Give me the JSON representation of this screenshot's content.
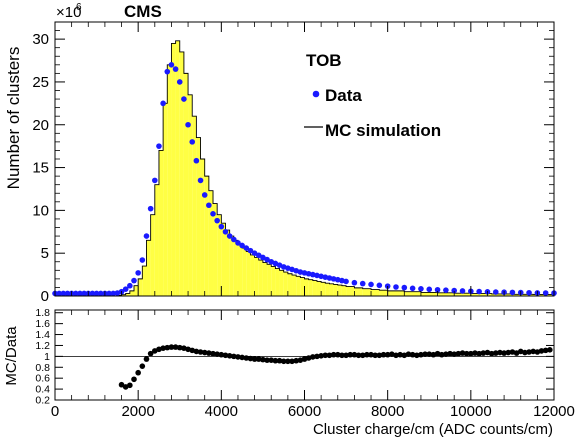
{
  "chart_data": [
    {
      "type": "bar",
      "panel": "main",
      "experiment": "CMS",
      "region_label": "TOB",
      "ylabel": "Number of clusters",
      "y_exponent_label": "×10",
      "y_exponent_power": "6",
      "xlim": [
        0,
        12000
      ],
      "ylim": [
        0,
        32
      ],
      "ytick_labels": [
        "0",
        "5",
        "10",
        "15",
        "20",
        "25",
        "30"
      ],
      "grid": false,
      "legend_placement": "top-right",
      "colors": {
        "mc_fill": "#ffff44",
        "mc_line": "#000000",
        "data_marker": "#1a1aff",
        "axis": "#000000"
      },
      "series": [
        {
          "name": "MC simulation",
          "kind": "histogram",
          "bin_width": 100,
          "bin_low_edges": [
            1500,
            1600,
            1700,
            1800,
            1900,
            2000,
            2100,
            2200,
            2300,
            2400,
            2500,
            2600,
            2700,
            2800,
            2900,
            3000,
            3100,
            3200,
            3300,
            3400,
            3500,
            3600,
            3700,
            3800,
            3900,
            4000,
            4100,
            4200,
            4300,
            4400,
            4500,
            4600,
            4700,
            4800,
            4900,
            5000,
            5100,
            5200,
            5300,
            5400,
            5500,
            5600,
            5700,
            5800,
            5900,
            6000,
            6100,
            6200,
            6300,
            6400,
            6500,
            6600,
            6700,
            6800,
            6900,
            7000,
            7200,
            7400,
            7600,
            7800,
            8000,
            8400,
            8800,
            9200,
            9600,
            10000,
            10500,
            11000,
            11500
          ],
          "values": [
            0.08,
            0.15,
            0.3,
            0.6,
            1.2,
            2.0,
            3.5,
            6.5,
            9.5,
            13.0,
            17.0,
            22.5,
            27.0,
            29.5,
            29.8,
            28.5,
            26.0,
            23.5,
            21.0,
            18.5,
            16.0,
            14.0,
            12.3,
            10.8,
            9.5,
            8.5,
            7.7,
            7.0,
            6.5,
            6.0,
            5.6,
            5.2,
            4.8,
            4.5,
            4.2,
            3.9,
            3.7,
            3.45,
            3.2,
            3.0,
            2.8,
            2.6,
            2.45,
            2.3,
            2.15,
            2.0,
            1.9,
            1.8,
            1.7,
            1.6,
            1.5,
            1.42,
            1.35,
            1.28,
            1.2,
            1.1,
            0.95,
            0.85,
            0.75,
            0.68,
            0.6,
            0.5,
            0.42,
            0.37,
            0.33,
            0.28,
            0.24,
            0.2,
            0.18
          ]
        },
        {
          "name": "Data",
          "kind": "points",
          "x": [
            0,
            100,
            200,
            300,
            400,
            500,
            600,
            700,
            800,
            900,
            1000,
            1100,
            1200,
            1300,
            1400,
            1500,
            1600,
            1700,
            1800,
            1900,
            2000,
            2100,
            2200,
            2300,
            2400,
            2500,
            2600,
            2700,
            2800,
            2900,
            3000,
            3100,
            3200,
            3300,
            3400,
            3500,
            3600,
            3700,
            3800,
            3900,
            4000,
            4100,
            4200,
            4300,
            4400,
            4500,
            4600,
            4700,
            4800,
            4900,
            5000,
            5100,
            5200,
            5300,
            5400,
            5500,
            5600,
            5700,
            5800,
            5900,
            6000,
            6100,
            6200,
            6300,
            6400,
            6500,
            6600,
            6700,
            6800,
            6900,
            7000,
            7200,
            7400,
            7600,
            7800,
            8000,
            8200,
            8400,
            8600,
            8800,
            9000,
            9200,
            9400,
            9600,
            9800,
            10000,
            10200,
            10400,
            10600,
            10800,
            11000,
            11200,
            11400,
            11600,
            11800,
            12000
          ],
          "y": [
            0.3,
            0.3,
            0.3,
            0.3,
            0.3,
            0.3,
            0.3,
            0.3,
            0.3,
            0.3,
            0.3,
            0.3,
            0.3,
            0.3,
            0.3,
            0.35,
            0.5,
            0.8,
            1.2,
            1.8,
            2.7,
            4.2,
            7.0,
            10.2,
            13.5,
            17.5,
            22.5,
            26.2,
            27.0,
            26.5,
            25.0,
            23.0,
            20.0,
            18.0,
            15.8,
            13.5,
            11.8,
            10.6,
            9.6,
            8.8,
            8.1,
            7.5,
            7.0,
            6.6,
            6.2,
            5.9,
            5.6,
            5.3,
            5.0,
            4.75,
            4.5,
            4.25,
            4.0,
            3.8,
            3.6,
            3.4,
            3.25,
            3.1,
            2.95,
            2.8,
            2.7,
            2.6,
            2.5,
            2.4,
            2.3,
            2.2,
            2.1,
            2.0,
            1.9,
            1.8,
            1.7,
            1.55,
            1.45,
            1.35,
            1.25,
            1.15,
            1.05,
            0.98,
            0.9,
            0.84,
            0.78,
            0.73,
            0.68,
            0.63,
            0.59,
            0.55,
            0.52,
            0.49,
            0.46,
            0.44,
            0.42,
            0.4,
            0.38,
            0.36,
            0.35,
            0.34
          ]
        }
      ]
    },
    {
      "type": "scatter",
      "panel": "ratio",
      "ylabel": "MC/Data",
      "xlabel": "Cluster charge/cm (ADC counts/cm)",
      "xlim": [
        0,
        12000
      ],
      "ylim": [
        0.2,
        1.85
      ],
      "reference_line": 1.0,
      "xtick_labels": [
        "0",
        "2000",
        "4000",
        "6000",
        "8000",
        "10000",
        "12000"
      ],
      "ytick_labels": [
        "0.2",
        "0.4",
        "0.6",
        "0.8",
        "1",
        "1.2",
        "1.4",
        "1.6",
        "1.8"
      ],
      "colors": {
        "marker": "#000000",
        "line": "#000000"
      },
      "x": [
        1600,
        1700,
        1800,
        1900,
        2000,
        2100,
        2200,
        2300,
        2400,
        2500,
        2600,
        2700,
        2800,
        2900,
        3000,
        3100,
        3200,
        3300,
        3400,
        3500,
        3600,
        3700,
        3800,
        3900,
        4000,
        4100,
        4200,
        4300,
        4400,
        4500,
        4600,
        4700,
        4800,
        4900,
        5000,
        5100,
        5200,
        5300,
        5400,
        5500,
        5600,
        5700,
        5800,
        5900,
        6000,
        6100,
        6200,
        6300,
        6400,
        6500,
        6600,
        6700,
        6800,
        6900,
        7000,
        7100,
        7200,
        7300,
        7400,
        7500,
        7600,
        7700,
        7800,
        7900,
        8000,
        8100,
        8200,
        8300,
        8400,
        8500,
        8600,
        8700,
        8800,
        8900,
        9000,
        9100,
        9200,
        9300,
        9400,
        9500,
        9600,
        9700,
        9800,
        9900,
        10000,
        10100,
        10200,
        10300,
        10400,
        10500,
        10600,
        10700,
        10800,
        10900,
        11000,
        11100,
        11200,
        11300,
        11400,
        11500,
        11600,
        11700,
        11800,
        11900
      ],
      "y": [
        0.48,
        0.44,
        0.47,
        0.58,
        0.7,
        0.82,
        0.95,
        1.05,
        1.1,
        1.13,
        1.15,
        1.16,
        1.17,
        1.17,
        1.16,
        1.15,
        1.13,
        1.11,
        1.09,
        1.08,
        1.07,
        1.06,
        1.05,
        1.04,
        1.03,
        1.02,
        1.01,
        1.0,
        0.99,
        0.98,
        0.97,
        0.96,
        0.95,
        0.95,
        0.94,
        0.93,
        0.93,
        0.92,
        0.92,
        0.91,
        0.91,
        0.91,
        0.92,
        0.93,
        0.95,
        0.97,
        0.99,
        1.0,
        1.01,
        1.02,
        1.02,
        1.03,
        1.03,
        1.02,
        1.02,
        1.03,
        1.03,
        1.02,
        1.02,
        1.03,
        1.03,
        1.02,
        1.02,
        1.03,
        1.03,
        1.04,
        1.02,
        1.03,
        1.02,
        1.04,
        1.03,
        1.02,
        1.03,
        1.04,
        1.04,
        1.03,
        1.05,
        1.03,
        1.04,
        1.05,
        1.04,
        1.05,
        1.06,
        1.05,
        1.05,
        1.06,
        1.05,
        1.06,
        1.07,
        1.05,
        1.06,
        1.07,
        1.06,
        1.07,
        1.08,
        1.06,
        1.09,
        1.07,
        1.08,
        1.09,
        1.08,
        1.1,
        1.11,
        1.12
      ]
    }
  ]
}
